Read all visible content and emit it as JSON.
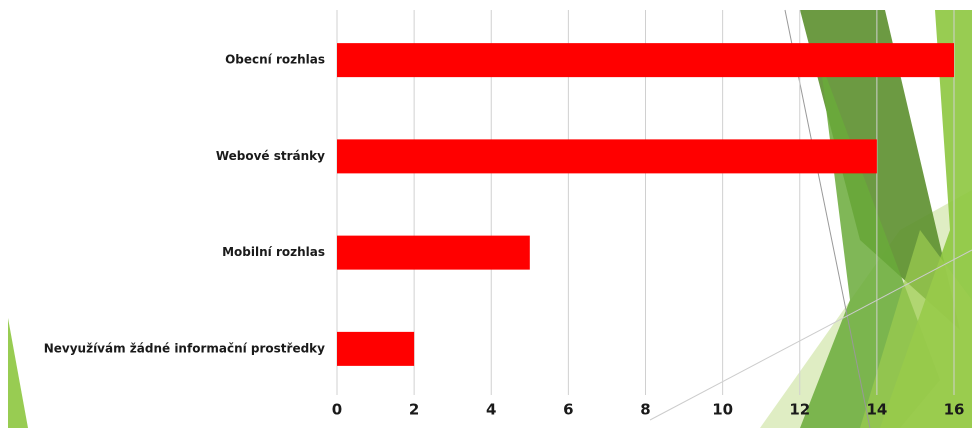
{
  "chart_data": {
    "type": "bar",
    "orientation": "horizontal",
    "categories": [
      "Obecní rozhlas",
      "Webové stránky",
      "Mobilní rozhlas",
      "Nevyužívám žádné informační prostředky"
    ],
    "values": [
      16,
      14,
      5,
      2
    ],
    "color": "#ff0000",
    "xlim": [
      0,
      16
    ],
    "xticks": [
      0,
      2,
      4,
      6,
      8,
      10,
      12,
      14,
      16
    ],
    "grid": true
  }
}
